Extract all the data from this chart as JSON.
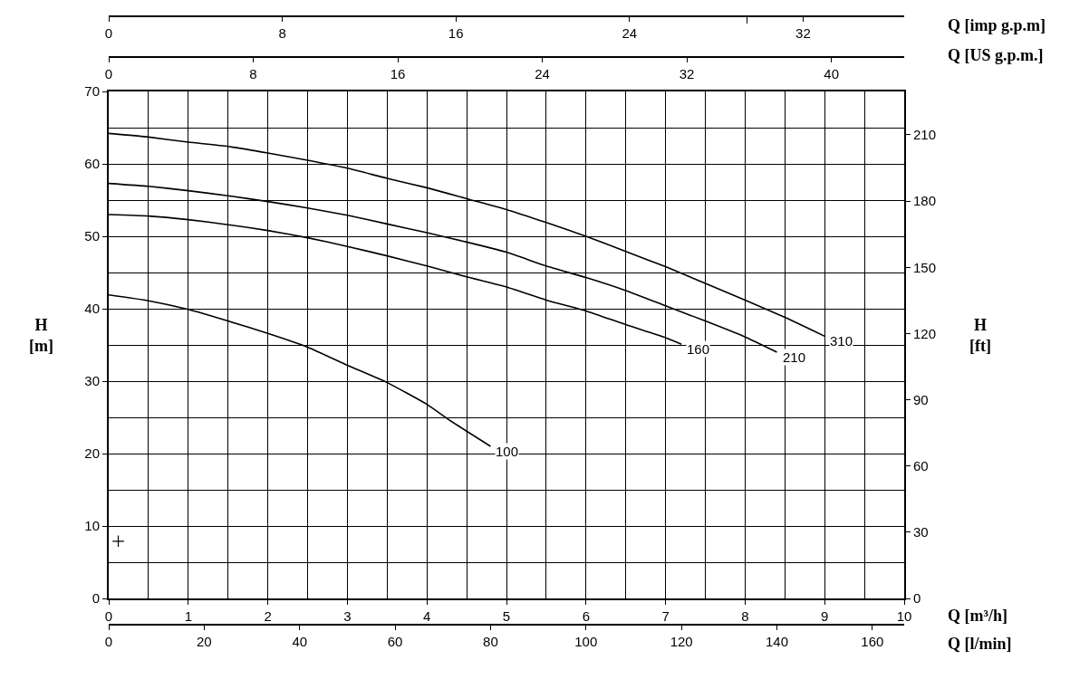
{
  "chart_data": [
    {
      "type": "line",
      "xlabel": "Q [imp g.p.m]",
      "xlim": [
        0,
        36.66
      ],
      "xticks": [
        0,
        8,
        16,
        24,
        {
          "value": 29.4,
          "label": null
        },
        32
      ],
      "ylim": [
        0,
        70
      ],
      "tick_labels": "x"
    },
    {
      "type": "line",
      "xlabel": "Q [US g.p.m.]",
      "xlim": [
        0,
        44.03
      ],
      "xticks": [
        0,
        8,
        16,
        24,
        32,
        40
      ],
      "ylim": [
        0,
        70
      ],
      "tick_labels": "x"
    },
    {
      "type": "line",
      "xlabel": "Q [m³/h]",
      "x2label": "Q [l/min]",
      "ylabel": "H\n[m]",
      "y2label": "H\n[ft]",
      "xlim": [
        0,
        10
      ],
      "xticks": [
        0,
        {
          "value": 0.5,
          "label": null
        },
        1,
        {
          "value": 1.5,
          "label": null
        },
        2,
        {
          "value": 2.5,
          "label": null
        },
        3,
        {
          "value": 3.5,
          "label": null
        },
        4,
        {
          "value": 4.5,
          "label": null
        },
        5,
        {
          "value": 5.5,
          "label": null
        },
        6,
        {
          "value": 6.5,
          "label": null
        },
        7,
        {
          "value": 7.5,
          "label": null
        },
        8,
        {
          "value": 8.5,
          "label": null
        },
        9,
        {
          "value": 9.5,
          "label": null
        },
        10
      ],
      "x2lim": [
        0,
        166.67
      ],
      "x2ticks": [
        0,
        20,
        40,
        60,
        80,
        100,
        120,
        140,
        160
      ],
      "ylim": [
        0,
        70
      ],
      "yticks": [
        0,
        {
          "value": 5,
          "label": null
        },
        10,
        {
          "value": 15,
          "label": null
        },
        20,
        {
          "value": 25,
          "label": null
        },
        30,
        {
          "value": 35,
          "label": null
        },
        40,
        {
          "value": 45,
          "label": null
        },
        50,
        {
          "value": 55,
          "label": null
        },
        60,
        {
          "value": 65,
          "label": null
        },
        70
      ],
      "y2lim": [
        0,
        229.66
      ],
      "y2ticks": [
        0,
        30,
        60,
        90,
        120,
        150,
        180,
        210
      ],
      "grid": true,
      "series": [
        {
          "name": "310",
          "color": "#000000",
          "x": [
            0,
            0.5,
            1,
            1.5,
            2,
            2.5,
            3,
            3.5,
            4,
            4.5,
            5,
            5.5,
            6,
            6.5,
            7,
            7.5,
            8,
            8.5,
            9
          ],
          "values": [
            64.2,
            63.7,
            63.0,
            62.4,
            61.5,
            60.5,
            59.4,
            58.0,
            56.7,
            55.2,
            53.7,
            51.9,
            50.0,
            47.9,
            45.8,
            43.5,
            41.2,
            38.8,
            36.2
          ]
        },
        {
          "name": "210",
          "color": "#000000",
          "x": [
            0,
            0.5,
            1,
            1.5,
            2,
            2.5,
            3,
            3.5,
            4,
            4.5,
            5,
            5.5,
            6,
            6.5,
            7,
            7.5,
            8,
            8.4
          ],
          "values": [
            57.3,
            56.9,
            56.3,
            55.6,
            54.8,
            53.9,
            52.9,
            51.7,
            50.5,
            49.2,
            47.8,
            45.9,
            44.3,
            42.5,
            40.4,
            38.3,
            36.1,
            34.0
          ]
        },
        {
          "name": "160",
          "color": "#000000",
          "x": [
            0,
            0.5,
            1,
            1.5,
            2,
            2.5,
            3,
            3.5,
            4,
            4.5,
            5,
            5.5,
            6,
            6.5,
            7,
            7.2
          ],
          "values": [
            53.0,
            52.8,
            52.3,
            51.6,
            50.8,
            49.8,
            48.6,
            47.3,
            45.9,
            44.4,
            43.0,
            41.2,
            39.7,
            37.8,
            36.0,
            35.1
          ]
        },
        {
          "name": "100",
          "color": "#000000",
          "x": [
            0,
            0.5,
            1,
            1.5,
            2,
            2.5,
            3,
            3.5,
            4,
            4.3,
            4.8
          ],
          "values": [
            41.9,
            41.1,
            39.9,
            38.3,
            36.6,
            34.7,
            32.2,
            29.8,
            26.8,
            24.5,
            21.0
          ]
        },
        {
          "type": "scatter",
          "marker": "cross",
          "color": "#000000",
          "x": [
            0.12
          ],
          "values": [
            7.9
          ]
        }
      ]
    }
  ]
}
